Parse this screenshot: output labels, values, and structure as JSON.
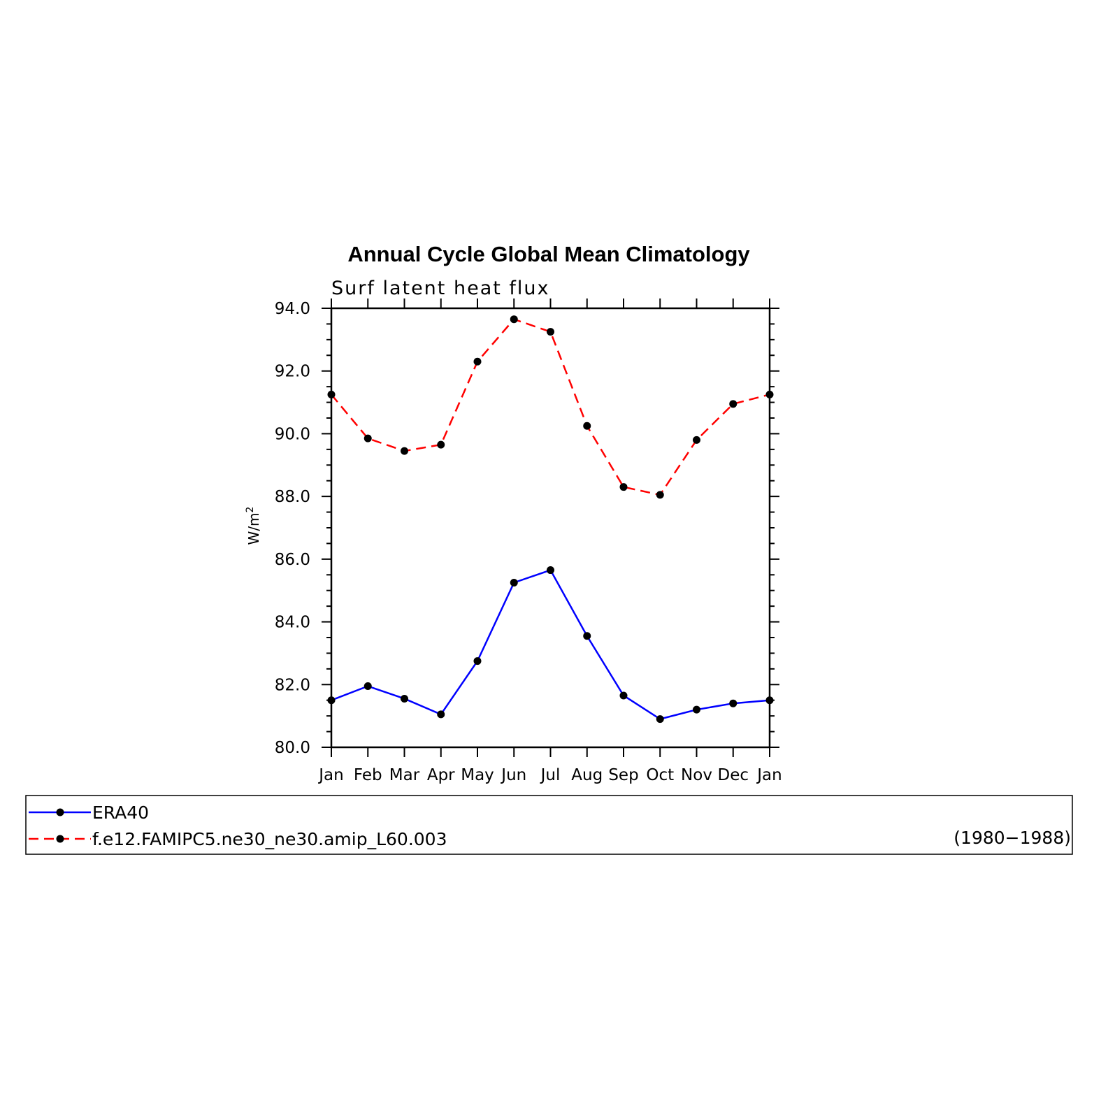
{
  "chart_data": {
    "type": "line",
    "title": "Annual Cycle Global Mean Climatology",
    "subtitle": "Surf latent heat flux",
    "ylabel": "W/m",
    "ylabel_sup": "2",
    "xlabel": "",
    "categories": [
      "Jan",
      "Feb",
      "Mar",
      "Apr",
      "May",
      "Jun",
      "Jul",
      "Aug",
      "Sep",
      "Oct",
      "Nov",
      "Dec",
      "Jan"
    ],
    "ylim": [
      80,
      94
    ],
    "yticks": [
      "80.0",
      "82.0",
      "84.0",
      "86.0",
      "88.0",
      "90.0",
      "92.0",
      "94.0"
    ],
    "grid": false,
    "legend_position": "bottom",
    "series": [
      {
        "name": "ERA40",
        "color": "#0000ff",
        "dash": "solid",
        "marker": "filled-circle",
        "values": [
          81.5,
          81.95,
          81.55,
          81.05,
          82.75,
          85.25,
          85.65,
          83.55,
          81.65,
          80.9,
          81.2,
          81.4,
          81.5
        ]
      },
      {
        "name": "f.e12.FAMIPC5.ne30_ne30.amip_L60.003",
        "color": "#ff0000",
        "dash": "dashed",
        "marker": "filled-circle",
        "values": [
          91.25,
          89.85,
          89.45,
          89.65,
          92.3,
          93.65,
          93.25,
          90.25,
          88.3,
          88.05,
          89.8,
          90.95,
          91.25
        ]
      }
    ],
    "legend_annotation": "(1980−1988)"
  }
}
